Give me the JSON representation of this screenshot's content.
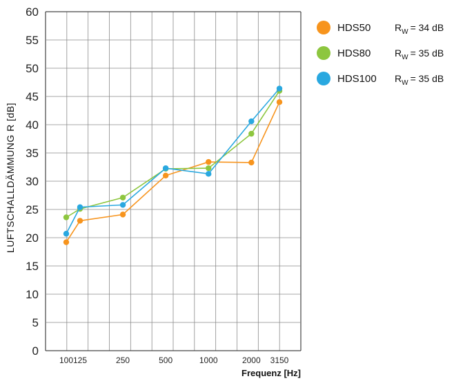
{
  "chart_data": {
    "type": "line",
    "title": "",
    "ylabel": "LUFTSCHALLDÄMMUNG R [dB]",
    "xlabel": "Frequenz [Hz]",
    "x": [
      100,
      125,
      250,
      500,
      1000,
      2000,
      3150
    ],
    "xticks": [
      "100",
      "125",
      "250",
      "500",
      "1000",
      "2000",
      "3150"
    ],
    "ylim": [
      0,
      60
    ],
    "yticks": [
      0,
      5,
      10,
      15,
      20,
      25,
      30,
      35,
      40,
      45,
      50,
      55,
      60
    ],
    "grid": true,
    "legend_position": "top-right",
    "series": [
      {
        "name": "HDS50",
        "rw_label": "R",
        "rw_sub": "W",
        "rw_value": "= 34 dB",
        "color": "#F7941D",
        "values": [
          19.2,
          23.0,
          24.1,
          31.0,
          33.4,
          33.3,
          44.0
        ]
      },
      {
        "name": "HDS80",
        "rw_label": "R",
        "rw_sub": "W",
        "rw_value": "= 35 dB",
        "color": "#8DC63F",
        "values": [
          23.6,
          25.1,
          27.1,
          32.2,
          32.3,
          38.4,
          46.0
        ]
      },
      {
        "name": "HDS100",
        "rw_label": "R",
        "rw_sub": "W",
        "rw_value": "= 35 dB",
        "color": "#29A8E0",
        "values": [
          20.7,
          25.4,
          25.8,
          32.3,
          31.3,
          40.6,
          46.4
        ]
      }
    ]
  }
}
